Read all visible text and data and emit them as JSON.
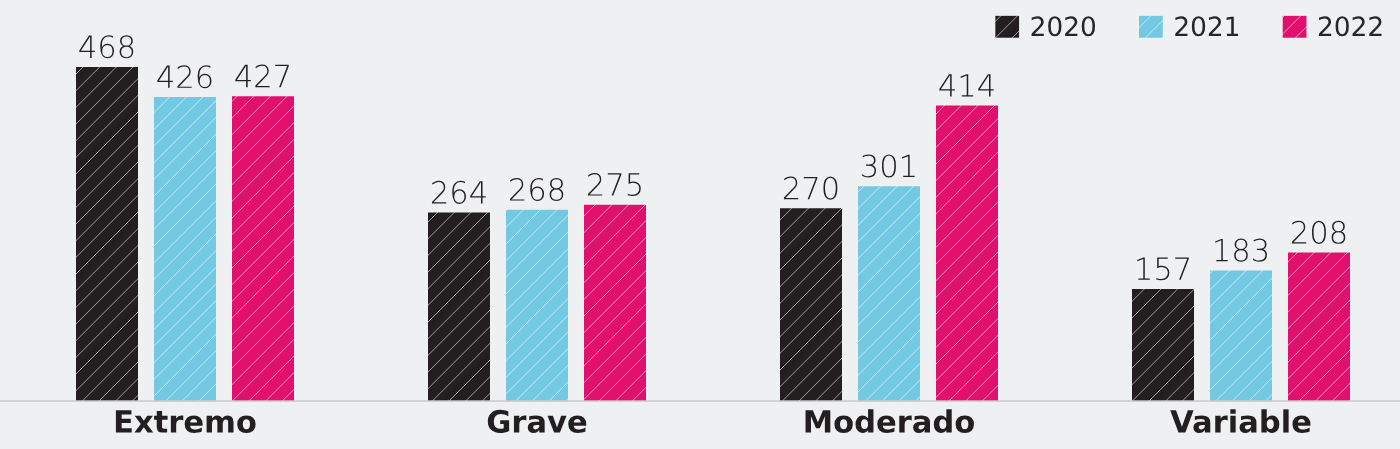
{
  "chart_data": {
    "type": "bar",
    "categories": [
      "Extremo",
      "Grave",
      "Moderado",
      "Variable"
    ],
    "series": [
      {
        "name": "2020",
        "color": "#231f20",
        "values": [
          468,
          264,
          270,
          157
        ]
      },
      {
        "name": "2021",
        "color": "#74c9e2",
        "values": [
          426,
          268,
          301,
          183
        ]
      },
      {
        "name": "2022",
        "color": "#e0106d",
        "values": [
          427,
          275,
          414,
          208
        ]
      }
    ],
    "data_labels": true,
    "legend": "top right",
    "grid": false
  }
}
